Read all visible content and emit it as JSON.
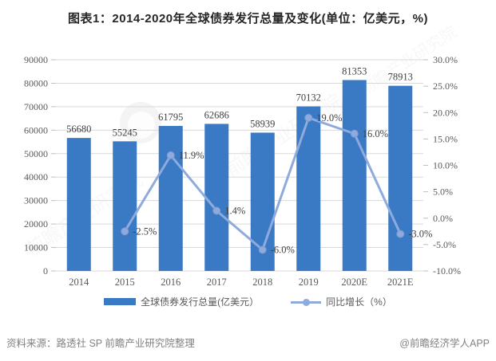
{
  "title": "图表1：2014-2020年全球债券发行总量及变化(单位：亿美元，%)",
  "chart_data": {
    "type": "bar",
    "subtype": "bar-line-combo",
    "categories": [
      "2014",
      "2015",
      "2016",
      "2017",
      "2018",
      "2019",
      "2020E",
      "2021E"
    ],
    "series": [
      {
        "name": "全球债券发行总量(亿美元）",
        "type": "bar",
        "axis": "left",
        "color": "#3A79C3",
        "values": [
          56680,
          55245,
          61795,
          62686,
          58939,
          70132,
          81353,
          78913
        ],
        "data_labels": [
          "56680",
          "55245",
          "61795",
          "62686",
          "58939",
          "70132",
          "81353",
          "78913"
        ]
      },
      {
        "name": "同比增长（%）",
        "type": "line",
        "axis": "right",
        "color": "#8FAADC",
        "values": [
          null,
          -2.5,
          11.9,
          1.4,
          -6.0,
          19.0,
          16.0,
          -3.0
        ],
        "data_labels": [
          "",
          "-2.5%",
          "11.9%",
          "1.4%",
          "-6.0%",
          "19.0%",
          "16.0%",
          "-3.0%"
        ]
      }
    ],
    "left_axis": {
      "min": 0,
      "max": 90000,
      "step": 10000,
      "ticks": [
        "0",
        "10000",
        "20000",
        "30000",
        "40000",
        "50000",
        "60000",
        "70000",
        "80000",
        "90000"
      ]
    },
    "right_axis": {
      "min": -10,
      "max": 30,
      "step": 5,
      "ticks": [
        "-10.0%",
        "-5.0%",
        "0.0%",
        "5.0%",
        "10.0%",
        "15.0%",
        "20.0%",
        "25.0%",
        "30.0%"
      ]
    },
    "grid": true,
    "legend_position": "bottom"
  },
  "colors": {
    "bar": "#3A79C3",
    "line": "#8FAADC",
    "gridline": "#D9D9D9",
    "tick": "#BFBFBF",
    "axis_text": "#595959",
    "label_text": "#404040"
  },
  "watermark": {
    "text": "前瞻产业研究院"
  },
  "footer": {
    "source": "资料来源：路透社 SP 前瞻产业研究院整理",
    "brand": "@前瞻经济学人APP"
  }
}
